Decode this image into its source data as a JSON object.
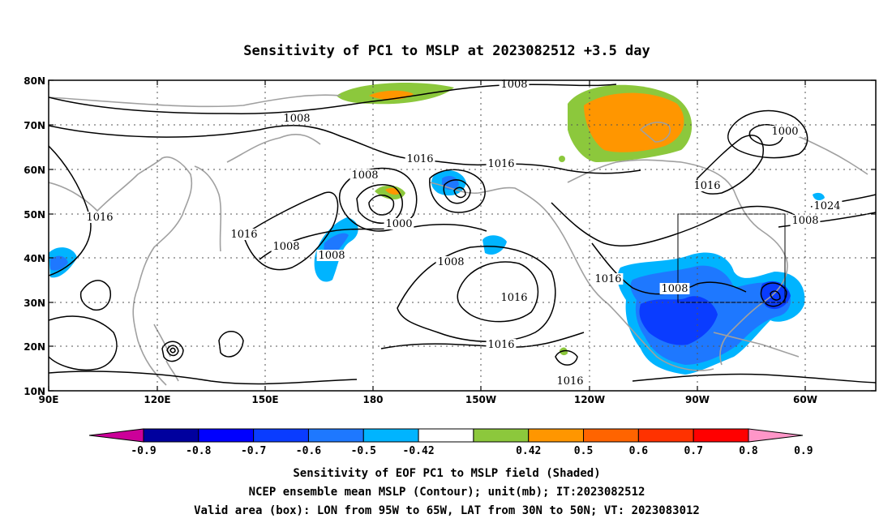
{
  "title": "Sensitivity of PC1 to MSLP at 2023082512 +3.5 day",
  "map": {
    "lat_labels": [
      "80N",
      "70N",
      "60N",
      "50N",
      "40N",
      "30N",
      "20N",
      "10N"
    ],
    "lon_labels": [
      "90E",
      "120E",
      "150E",
      "180",
      "150W",
      "120W",
      "90W",
      "60W"
    ],
    "valid_box": {
      "lon_from": "95W",
      "lon_to": "65W",
      "lat_from": "30N",
      "lat_to": "50N"
    },
    "contour_labels": [
      "1008",
      "1008",
      "1000",
      "1016",
      "1016",
      "1016",
      "1016",
      "1008",
      "1000",
      "1008",
      "1016",
      "1024",
      "1016",
      "1008",
      "1008",
      "1008",
      "1016",
      "1016",
      "1016",
      "1008"
    ]
  },
  "colorbar": {
    "labels": [
      "-0.9",
      "-0.8",
      "-0.7",
      "-0.6",
      "-0.5",
      "-0.42",
      "0.42",
      "0.5",
      "0.6",
      "0.7",
      "0.8",
      "0.9"
    ],
    "colors": [
      "#cc0099",
      "#00009e",
      "#0000ff",
      "#0a3cff",
      "#1e78ff",
      "#00b4ff",
      "#ffffff",
      "#8cc83c",
      "#ff9600",
      "#ff6400",
      "#ff3200",
      "#ff0000",
      "#ff96c8"
    ]
  },
  "caption": {
    "line1": "Sensitivity of EOF PC1 to MSLP field (Shaded)",
    "line2": "NCEP ensemble mean MSLP (Contour); unit(mb); IT:2023082512",
    "line3": "Valid area (box): LON from 95W to 65W, LAT from 30N to 50N; VT: 2023083012"
  }
}
